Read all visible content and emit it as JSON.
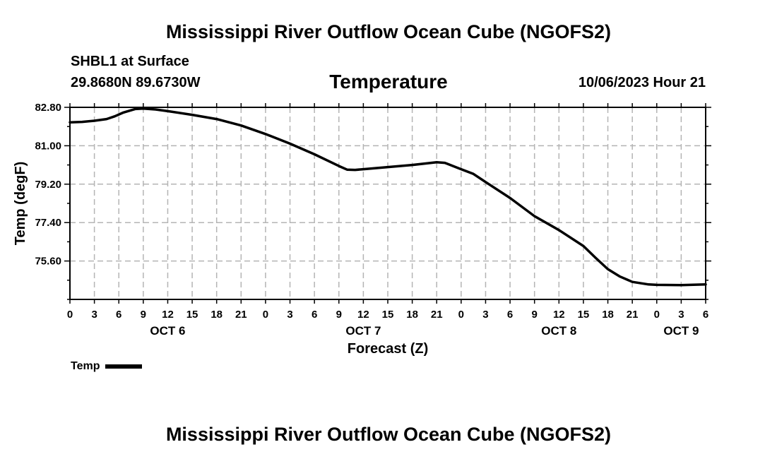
{
  "header": {
    "main_title": "Mississippi River Outflow Ocean Cube (NGOFS2)",
    "station": "SHBL1 at Surface",
    "coords": "29.8680N  89.6730W",
    "chart_title": "Temperature",
    "timestamp": "10/06/2023 Hour 21"
  },
  "legend": {
    "label": "Temp"
  },
  "footer": {
    "title": "Mississippi River Outflow Ocean Cube (NGOFS2)"
  },
  "chart_data": {
    "type": "line",
    "title": "Temperature",
    "xlabel": "Forecast (Z)",
    "ylabel": "Temp (degF)",
    "xlim": [
      0,
      78
    ],
    "ylim": [
      73.8,
      82.8
    ],
    "yticks": [
      82.8,
      81.0,
      79.2,
      77.4,
      75.6
    ],
    "ytick_labels": [
      "82.80",
      "81.00",
      "79.20",
      "77.40",
      "75.60"
    ],
    "xticks": [
      0,
      3,
      6,
      9,
      12,
      15,
      18,
      21,
      24,
      27,
      30,
      33,
      36,
      39,
      42,
      45,
      48,
      51,
      54,
      57,
      60,
      63,
      66,
      69,
      72,
      75,
      78
    ],
    "xtick_labels": [
      "0",
      "3",
      "6",
      "9",
      "12",
      "15",
      "18",
      "21",
      "0",
      "3",
      "6",
      "9",
      "12",
      "15",
      "18",
      "21",
      "0",
      "3",
      "6",
      "9",
      "12",
      "15",
      "18",
      "21",
      "0",
      "3",
      "6"
    ],
    "day_labels": [
      {
        "x": 12,
        "label": "OCT 6"
      },
      {
        "x": 36,
        "label": "OCT 7"
      },
      {
        "x": 60,
        "label": "OCT 8"
      },
      {
        "x": 75,
        "label": "OCT 9"
      }
    ],
    "grid": true,
    "series": [
      {
        "name": "Temp",
        "color": "#000000",
        "x": [
          0,
          1.5,
          3,
          4.5,
          5.5,
          6.5,
          8,
          9,
          10.5,
          12,
          15,
          18,
          21,
          24,
          27,
          30,
          33,
          34,
          35,
          36,
          39,
          42,
          45,
          46,
          47,
          48,
          49.5,
          51,
          54,
          57,
          60,
          63,
          64.5,
          66,
          67.5,
          69,
          71,
          72,
          75,
          78
        ],
        "y": [
          82.1,
          82.12,
          82.17,
          82.25,
          82.38,
          82.55,
          82.72,
          82.74,
          82.7,
          82.62,
          82.45,
          82.25,
          81.95,
          81.55,
          81.1,
          80.6,
          80.05,
          79.88,
          79.87,
          79.9,
          80.0,
          80.1,
          80.23,
          80.2,
          80.05,
          79.9,
          79.68,
          79.3,
          78.55,
          77.7,
          77.05,
          76.3,
          75.75,
          75.22,
          74.87,
          74.62,
          74.5,
          74.48,
          74.47,
          74.5
        ]
      }
    ]
  }
}
